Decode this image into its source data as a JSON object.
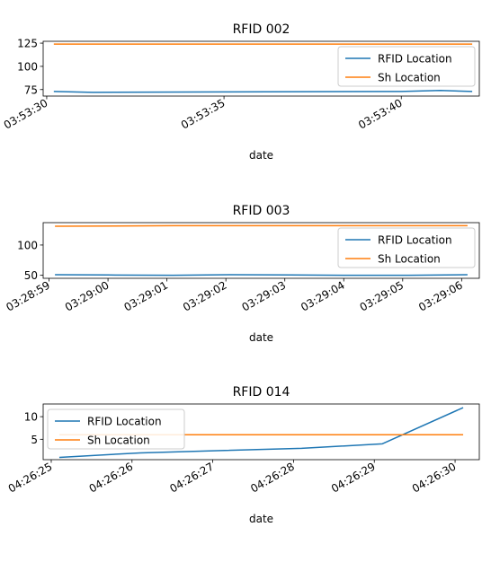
{
  "chart_data": [
    {
      "type": "line",
      "title": "RFID 002",
      "xlabel": "date",
      "ylabel": "",
      "x_type": "time",
      "xlim": [
        "03:53:29.9",
        "03:53:42.2"
      ],
      "ylim": [
        68,
        127
      ],
      "yticks": [
        75,
        100,
        125
      ],
      "xticks": [
        "03:53:30",
        "03:53:35",
        "03:53:40"
      ],
      "legend_loc": "right",
      "grid": false,
      "series": [
        {
          "name": "RFID Location",
          "color": "#1f77b4",
          "points": [
            [
              "03:53:30.2",
              73
            ],
            [
              "03:53:31.3",
              72
            ],
            [
              "03:53:35.0",
              72.5
            ],
            [
              "03:53:40.0",
              73
            ],
            [
              "03:53:41.1",
              74
            ],
            [
              "03:53:42.0",
              73
            ]
          ]
        },
        {
          "name": "Sh Location",
          "color": "#ff7f0e",
          "points": [
            [
              "03:53:30.2",
              124
            ],
            [
              "03:53:42.0",
              124
            ]
          ]
        }
      ]
    },
    {
      "type": "line",
      "title": "RFID 003",
      "xlabel": "date",
      "ylabel": "",
      "x_type": "time",
      "xlim": [
        "03:28:58.9",
        "03:29:06.3"
      ],
      "ylim": [
        45,
        137
      ],
      "yticks": [
        50,
        100
      ],
      "xticks": [
        "03:28:59",
        "03:29:00",
        "03:29:01",
        "03:29:02",
        "03:29:03",
        "03:29:04",
        "03:29:05",
        "03:29:06"
      ],
      "legend_loc": "right",
      "grid": false,
      "series": [
        {
          "name": "RFID Location",
          "color": "#1f77b4",
          "points": [
            [
              "03:28:59.1",
              51
            ],
            [
              "03:29:00.0",
              50.5
            ],
            [
              "03:29:01.1",
              50
            ],
            [
              "03:29:02.1",
              51
            ],
            [
              "03:29:03.1",
              50.5
            ],
            [
              "03:29:04.1",
              50
            ],
            [
              "03:29:05.1",
              50
            ],
            [
              "03:29:06.1",
              51
            ]
          ]
        },
        {
          "name": "Sh Location",
          "color": "#ff7f0e",
          "points": [
            [
              "03:28:59.1",
              131
            ],
            [
              "03:29:01.1",
              132
            ],
            [
              "03:29:06.1",
              132
            ]
          ]
        }
      ]
    },
    {
      "type": "line",
      "title": "RFID 014",
      "xlabel": "date",
      "ylabel": "",
      "x_type": "time",
      "xlim": [
        "04:26:24.9",
        "04:26:30.3"
      ],
      "ylim": [
        0.5,
        12.8
      ],
      "yticks": [
        5,
        10
      ],
      "xticks": [
        "04:26:25",
        "04:26:26",
        "04:26:27",
        "04:26:28",
        "04:26:29",
        "04:26:30"
      ],
      "legend_loc": "left",
      "grid": false,
      "series": [
        {
          "name": "RFID Location",
          "color": "#1f77b4",
          "points": [
            [
              "04:26:25.1",
              1
            ],
            [
              "04:26:26.1",
              2
            ],
            [
              "04:26:27.1",
              2.5
            ],
            [
              "04:26:28.1",
              3
            ],
            [
              "04:26:29.1",
              4
            ],
            [
              "04:26:30.1",
              12
            ]
          ]
        },
        {
          "name": "Sh Location",
          "color": "#ff7f0e",
          "points": [
            [
              "04:26:25.1",
              6
            ],
            [
              "04:26:30.1",
              6
            ]
          ]
        }
      ]
    }
  ]
}
